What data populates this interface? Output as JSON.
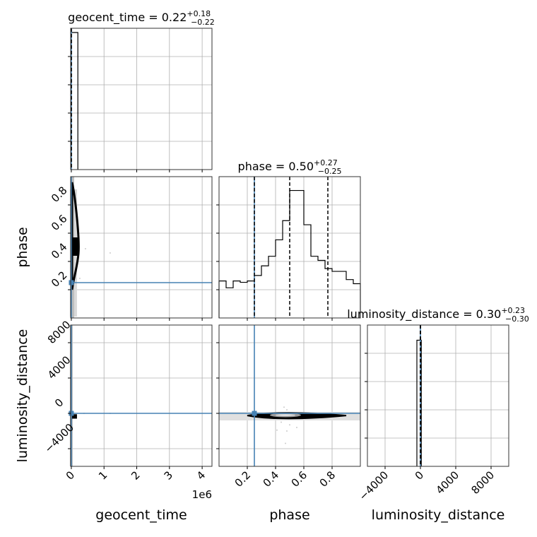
{
  "chart_data": {
    "type": "corner",
    "parameters": [
      "geocent_time",
      "phase",
      "luminosity_distance"
    ],
    "injection": {
      "geocent_time": 0,
      "phase": 0.25,
      "luminosity_distance": 0
    },
    "titles": [
      {
        "param": "geocent_time",
        "prefix": "geocent_time = 0.22",
        "plus": "+0.18",
        "minus": "−0.22"
      },
      {
        "param": "phase",
        "prefix": "phase = 0.50",
        "plus": "+0.27",
        "minus": "−0.25"
      },
      {
        "param": "luminosity_distance",
        "prefix": "luminosity_distance = 0.30",
        "plus": "+0.23",
        "minus": "−0.30"
      }
    ],
    "axis_labels": {
      "x": [
        "geocent_time",
        "phase",
        "luminosity_distance"
      ],
      "y": [
        "phase",
        "luminosity_distance"
      ]
    },
    "ranges": {
      "geocent_time": [
        -20000,
        4300000
      ],
      "phase": [
        0.0,
        1.0
      ],
      "luminosity_distance": [
        -6000,
        10000
      ]
    },
    "offset_label": "1e6",
    "ticks": {
      "geocent_time": {
        "values": [
          0,
          1000000,
          2000000,
          3000000,
          4000000
        ],
        "labels": [
          "0",
          "1",
          "2",
          "3",
          "4"
        ]
      },
      "phase_x": {
        "values": [
          0.2,
          0.4,
          0.6,
          0.8
        ],
        "labels": [
          "0.2",
          "0.4",
          "0.6",
          "0.8"
        ]
      },
      "phase_y": {
        "values": [
          0.2,
          0.4,
          0.6,
          0.8
        ],
        "labels": [
          "0.2",
          "0.4",
          "0.6",
          "0.8"
        ]
      },
      "luminosity_distance": {
        "values": [
          -4000,
          0,
          4000,
          8000
        ],
        "labels": [
          "−4000",
          "0",
          "4000",
          "8000"
        ]
      },
      "luminosity_distance_y": {
        "values": [
          -4000,
          0,
          4000,
          8000
        ],
        "labels": [
          "−4000",
          "0",
          "4000",
          "8000"
        ]
      }
    },
    "histograms": {
      "geocent_time": {
        "edges": [
          0,
          200000
        ],
        "values": [
          1.0
        ],
        "quantiles": [
          0,
          0.22,
          0.4
        ]
      },
      "phase": {
        "edges": [
          0.0,
          0.05,
          0.1,
          0.15,
          0.2,
          0.25,
          0.3,
          0.35,
          0.4,
          0.45,
          0.5,
          0.55,
          0.6,
          0.65,
          0.7,
          0.75,
          0.8,
          0.85,
          0.9,
          0.95,
          1.0
        ],
        "values": [
          0.27,
          0.22,
          0.27,
          0.26,
          0.27,
          0.31,
          0.38,
          0.45,
          0.57,
          0.71,
          0.93,
          0.93,
          0.68,
          0.45,
          0.42,
          0.36,
          0.34,
          0.34,
          0.28,
          0.25
        ],
        "quantiles": [
          0.25,
          0.5,
          0.77
        ]
      },
      "luminosity_distance": {
        "edges": [
          -400,
          0,
          100
        ],
        "values": [
          0.92,
          0.92
        ],
        "quantiles": [
          0.0,
          0.3,
          0.53
        ]
      }
    },
    "grid": true,
    "colors": {
      "injection": "#4682b4",
      "line": "#000000",
      "grid": "#b0b0b0",
      "scatter": "#cccccc"
    }
  }
}
